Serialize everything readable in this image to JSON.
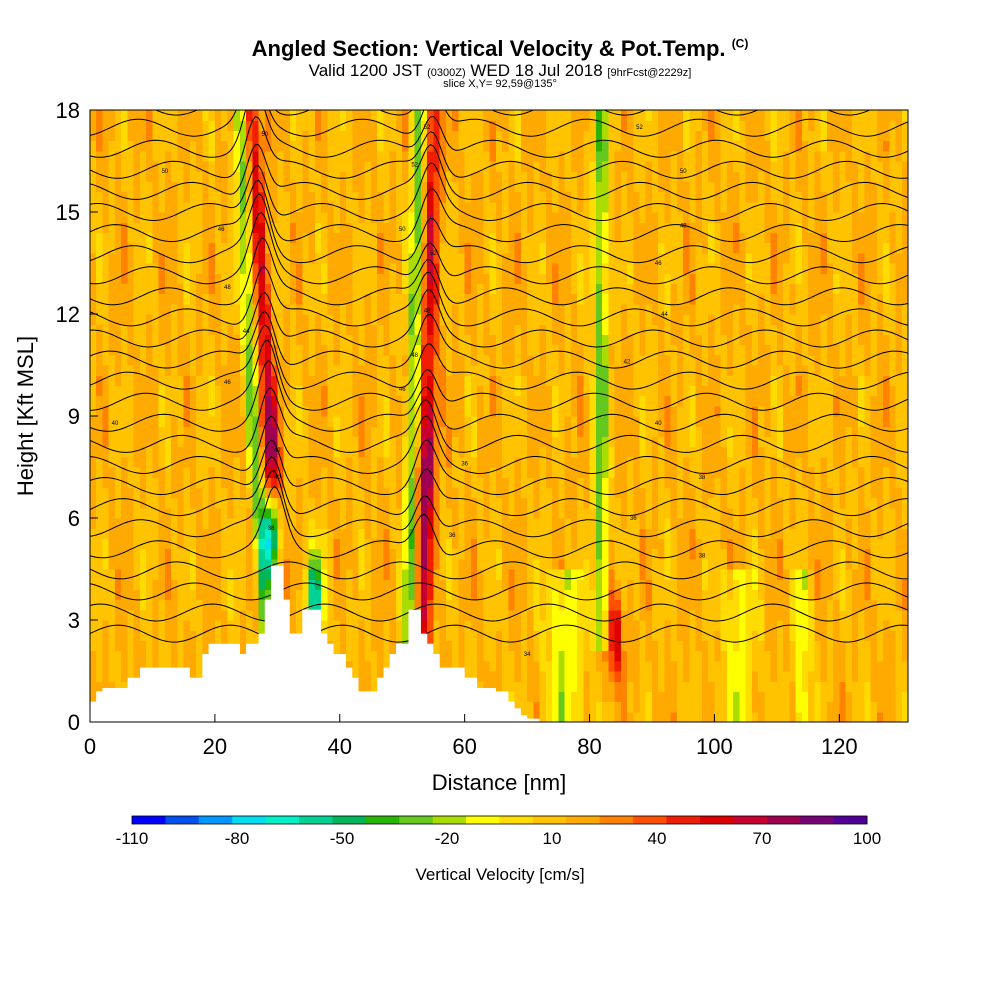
{
  "header": {
    "title": "Angled Section: Vertical Velocity & Pot.Temp.",
    "copyright": "(C)",
    "valid_prefix": "Valid 1200 JST",
    "valid_utc": "(0300Z)",
    "valid_date": "WED 18 Jul 2018",
    "forecast": "[9hrFcst@2229z]",
    "slice": "slice X,Y= 92,59@135°"
  },
  "chart_data": {
    "type": "heatmap",
    "title": "Angled Section: Vertical Velocity & Pot.Temp.",
    "xlabel": "Distance [nm]",
    "ylabel": "Height [Kft MSL]",
    "xlim": [
      0,
      131
    ],
    "ylim": [
      0,
      18
    ],
    "x_ticks": [
      0,
      20,
      40,
      60,
      80,
      100,
      120
    ],
    "y_ticks": [
      0,
      3,
      6,
      9,
      12,
      15,
      18
    ],
    "colorbar": {
      "label": "Vertical Velocity [cm/s]",
      "tick_labels": [
        "-110",
        "-80",
        "-50",
        "-20",
        "10",
        "40",
        "70",
        "100"
      ],
      "tick_values": [
        -110,
        -80,
        -50,
        -20,
        10,
        40,
        70,
        100
      ],
      "colors": [
        "#0000ff",
        "#0050f0",
        "#0096ff",
        "#00dcf0",
        "#00f0c8",
        "#00d296",
        "#00b45a",
        "#28b400",
        "#64c81e",
        "#aadc00",
        "#ffff00",
        "#ffdc00",
        "#ffc300",
        "#ffaa00",
        "#ff8200",
        "#ff5000",
        "#f01e00",
        "#dc0000",
        "#c80032",
        "#a00050",
        "#780078",
        "#500096"
      ]
    },
    "updraft_bands": [
      {
        "x_bottom": 31,
        "x_top": 26,
        "peak_cm_s": 90
      },
      {
        "x_bottom": 53,
        "x_top": 55,
        "peak_cm_s": 90
      },
      {
        "x_bottom": 84,
        "x_top": 84,
        "peak_cm_s": 60
      }
    ],
    "downdraft_bands": [
      {
        "x": 29,
        "y": 5.5,
        "min_cm_s": -110
      },
      {
        "x": 36,
        "y": 3.6,
        "min_cm_s": -60
      }
    ],
    "terrain": {
      "x": [
        0,
        1,
        2,
        6,
        8,
        11,
        16,
        18,
        19,
        24,
        25,
        27,
        28,
        29,
        30,
        31,
        32,
        34,
        37,
        38,
        39,
        41,
        42,
        43,
        45,
        46,
        47,
        48,
        49,
        51,
        52,
        53,
        54,
        55,
        56,
        60,
        61,
        62,
        65,
        67,
        68,
        69,
        70,
        72,
        131
      ],
      "height_kft": [
        0.6,
        0.9,
        1.0,
        1.3,
        1.6,
        1.6,
        1.3,
        2.0,
        2.3,
        2.0,
        2.3,
        2.6,
        3.6,
        4.6,
        4.6,
        3.6,
        2.6,
        3.3,
        2.6,
        2.3,
        2.0,
        1.6,
        1.3,
        0.9,
        0.9,
        1.3,
        1.6,
        2.0,
        2.3,
        3.3,
        3.3,
        2.6,
        2.3,
        2.0,
        1.6,
        1.3,
        1.3,
        1.0,
        0.9,
        0.6,
        0.4,
        0.2,
        0.1,
        0.0,
        0.0
      ]
    },
    "theta_contours": {
      "units": "K",
      "labels": [
        {
          "value": "34",
          "x": 70,
          "y": 2.0
        },
        {
          "value": "38",
          "x": 98,
          "y": 4.9
        },
        {
          "value": "36",
          "x": 87,
          "y": 6.0
        },
        {
          "value": "38",
          "x": 98,
          "y": 7.2
        },
        {
          "value": "40",
          "x": 91,
          "y": 8.8
        },
        {
          "value": "42",
          "x": 86,
          "y": 10.6
        },
        {
          "value": "44",
          "x": 92,
          "y": 12.0
        },
        {
          "value": "46",
          "x": 91,
          "y": 13.5
        },
        {
          "value": "48",
          "x": 95,
          "y": 14.6
        },
        {
          "value": "50",
          "x": 95,
          "y": 16.2
        },
        {
          "value": "52",
          "x": 88,
          "y": 17.5
        },
        {
          "value": "38",
          "x": 29,
          "y": 5.7
        },
        {
          "value": "40",
          "x": 30,
          "y": 7.2
        },
        {
          "value": "42",
          "x": 30,
          "y": 8.0
        },
        {
          "value": "40",
          "x": 4,
          "y": 8.8
        },
        {
          "value": "46",
          "x": 22,
          "y": 10.0
        },
        {
          "value": "44",
          "x": 25,
          "y": 11.5
        },
        {
          "value": "48",
          "x": 22,
          "y": 12.8
        },
        {
          "value": "46",
          "x": 21,
          "y": 14.5
        },
        {
          "value": "50",
          "x": 12,
          "y": 16.2
        },
        {
          "value": "50",
          "x": 28,
          "y": 17.3
        },
        {
          "value": "46",
          "x": 50,
          "y": 9.8
        },
        {
          "value": "48",
          "x": 52,
          "y": 10.8
        },
        {
          "value": "48",
          "x": 54,
          "y": 12.1
        },
        {
          "value": "52",
          "x": 55,
          "y": 13.8
        },
        {
          "value": "50",
          "x": 50,
          "y": 14.5
        },
        {
          "value": "52",
          "x": 52,
          "y": 16.4
        },
        {
          "value": "52",
          "x": 54,
          "y": 17.5
        },
        {
          "value": "36",
          "x": 60,
          "y": 7.6
        },
        {
          "value": "36",
          "x": 58,
          "y": 5.5
        }
      ]
    }
  }
}
